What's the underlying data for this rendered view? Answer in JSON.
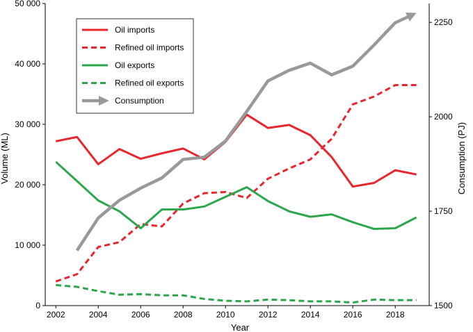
{
  "chart_data": {
    "type": "line",
    "xlabel": "Year",
    "ylabel_left": "Volume (ML)",
    "ylabel_right": "Consumption (PJ)",
    "x_ticks": [
      "2002",
      "2004",
      "2006",
      "2008",
      "2010",
      "2012",
      "2014",
      "2016",
      "2018"
    ],
    "y_left_ticks": [
      "0",
      "10 000",
      "20 000",
      "30 000",
      "40 000",
      "50 000"
    ],
    "y_right_ticks": [
      "1500",
      "1750",
      "2000",
      "2250"
    ],
    "xlim": [
      2001.5,
      2019.6
    ],
    "ylim_left": [
      0,
      50000
    ],
    "ylim_right": [
      1500,
      2300
    ],
    "grid": false,
    "legend_position": "top-left",
    "series": [
      {
        "name": "Oil imports",
        "axis": "left",
        "color": "#e8262b",
        "style": "solid",
        "x": [
          2002,
          2003,
          2004,
          2005,
          2006,
          2007,
          2008,
          2009,
          2010,
          2011,
          2012,
          2013,
          2014,
          2015,
          2016,
          2017,
          2018,
          2019
        ],
        "values": [
          27200,
          27900,
          23400,
          25900,
          24300,
          25200,
          26000,
          24200,
          27100,
          31600,
          29400,
          29900,
          28200,
          24600,
          19700,
          20300,
          22400,
          21700
        ]
      },
      {
        "name": "Refined oil imports",
        "axis": "left",
        "color": "#e8262b",
        "style": "dashed",
        "x": [
          2002,
          2003,
          2004,
          2005,
          2006,
          2007,
          2008,
          2009,
          2010,
          2011,
          2012,
          2013,
          2014,
          2015,
          2016,
          2017,
          2018,
          2019
        ],
        "values": [
          4000,
          5200,
          9700,
          10500,
          13500,
          13100,
          16900,
          18600,
          18800,
          17800,
          21000,
          22700,
          24200,
          27600,
          33300,
          34600,
          36500,
          36500
        ]
      },
      {
        "name": "Oil exports",
        "axis": "left",
        "color": "#2ca64a",
        "style": "solid",
        "x": [
          2002,
          2003,
          2004,
          2005,
          2006,
          2007,
          2008,
          2009,
          2010,
          2011,
          2012,
          2013,
          2014,
          2015,
          2016,
          2017,
          2018,
          2019
        ],
        "values": [
          23800,
          20600,
          17400,
          15600,
          12800,
          15900,
          15900,
          16400,
          18000,
          19600,
          17300,
          15600,
          14700,
          15100,
          13800,
          12700,
          12800,
          14600
        ]
      },
      {
        "name": "Refined oil exports",
        "axis": "left",
        "color": "#2ca64a",
        "style": "dashed",
        "x": [
          2002,
          2003,
          2004,
          2005,
          2006,
          2007,
          2008,
          2009,
          2010,
          2011,
          2012,
          2013,
          2014,
          2015,
          2016,
          2017,
          2018,
          2019
        ],
        "values": [
          3400,
          3100,
          2400,
          1800,
          1900,
          1700,
          1700,
          1100,
          800,
          700,
          1000,
          900,
          700,
          700,
          500,
          1000,
          900,
          900
        ]
      },
      {
        "name": "Consumption",
        "axis": "right",
        "color": "#999999",
        "style": "solid-arrow",
        "x": [
          2003,
          2004,
          2005,
          2006,
          2007,
          2008,
          2009,
          2010,
          2011,
          2012,
          2013,
          2014,
          2015,
          2016,
          2017,
          2018,
          2019
        ],
        "values": [
          1646,
          1732,
          1779,
          1811,
          1838,
          1887,
          1893,
          1936,
          2014,
          2095,
          2123,
          2142,
          2111,
          2134,
          2190,
          2249,
          2275
        ]
      }
    ]
  }
}
